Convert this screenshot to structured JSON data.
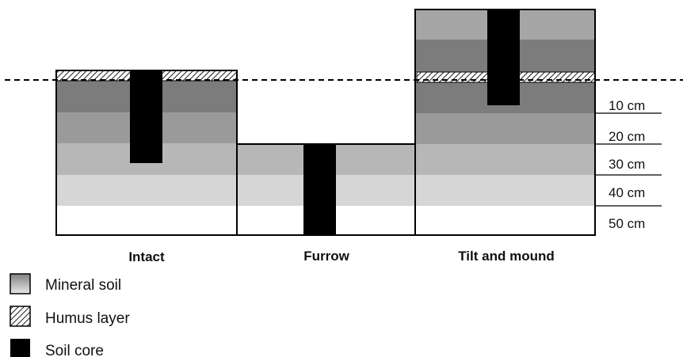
{
  "columns": [
    {
      "label": "Intact"
    },
    {
      "label": "Furrow"
    },
    {
      "label": "Tilt and mound"
    }
  ],
  "depth_scale": {
    "labels": [
      "10 cm",
      "20 cm",
      "30 cm",
      "40 cm",
      "50 cm"
    ]
  },
  "legend": {
    "items": [
      {
        "label": "Mineral soil",
        "pattern": "gradient-gray"
      },
      {
        "label": "Humus layer",
        "pattern": "diagonal-hatch"
      },
      {
        "label": "Soil core",
        "pattern": "solid-black"
      }
    ]
  },
  "colors": {
    "band_1": "#7c7c7c",
    "band_2": "#9a9a9a",
    "band_3": "#b7b7b7",
    "band_4": "#d6d6d6",
    "band_5": "#ffffff",
    "core": "#000000",
    "outline": "#000000"
  }
}
